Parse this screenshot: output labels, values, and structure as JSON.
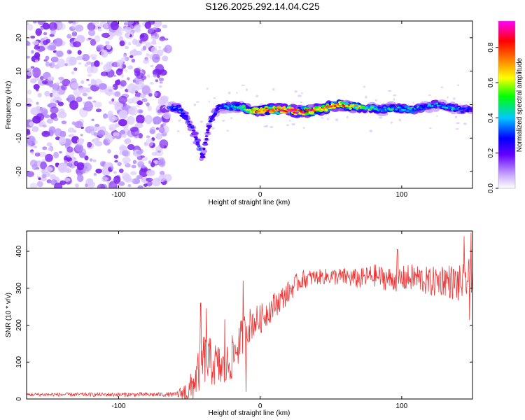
{
  "title": "S126.2025.292.14.04.C25",
  "chart_data": [
    {
      "type": "heatmap",
      "name": "spectrogram",
      "xlabel": "Height of straight line (km)",
      "ylabel": "Frequency (Hz)",
      "xlim": [
        -165,
        150
      ],
      "ylim": [
        -25,
        25
      ],
      "xticks": [
        -100,
        0,
        100
      ],
      "yticks": [
        -20,
        -10,
        0,
        10,
        20
      ],
      "noise_region_x": [
        -165,
        -65
      ],
      "signal_region_x": [
        -65,
        150
      ],
      "ridge": {
        "x": [
          -64,
          -58,
          -52,
          -47,
          -43,
          -41,
          -38,
          -35,
          -30,
          -25,
          -15,
          -5,
          5,
          15,
          25,
          35,
          45,
          55,
          65,
          75,
          85,
          95,
          105,
          115,
          125,
          135,
          145,
          150
        ],
        "freq": [
          -1,
          -1,
          -4,
          -8,
          -13,
          -16,
          -10,
          -5,
          -1,
          -0.5,
          -0.5,
          -2,
          -1.5,
          -1.5,
          -2,
          -2,
          -1,
          0,
          -0.5,
          -1,
          -1.5,
          -1,
          -1.5,
          -1,
          0,
          -1,
          -1.5,
          -1
        ],
        "amp": [
          0.35,
          0.4,
          0.3,
          0.3,
          0.35,
          0.35,
          0.3,
          0.3,
          0.35,
          0.4,
          0.5,
          0.7,
          0.85,
          0.9,
          0.9,
          0.85,
          0.85,
          0.8,
          0.7,
          0.55,
          0.45,
          0.45,
          0.45,
          0.4,
          0.4,
          0.45,
          0.35,
          0.3
        ]
      },
      "colorbar": {
        "label": "Normalized spectral amplitude",
        "ticks": [
          0.0,
          0.2,
          0.4,
          0.6,
          0.8
        ],
        "range": [
          0,
          0.95
        ],
        "colors": [
          "#ffffff",
          "#c8a8ff",
          "#6600ff",
          "#0000ff",
          "#00c8ff",
          "#00ff00",
          "#ffff00",
          "#ff8800",
          "#ff0000",
          "#ff00ff"
        ]
      }
    },
    {
      "type": "line",
      "name": "snr",
      "xlabel": "Height of straight line (km)",
      "ylabel": "SNR (10 * v/v)",
      "xlim": [
        -165,
        150
      ],
      "ylim": [
        0,
        455
      ],
      "xticks": [
        -100,
        0,
        100
      ],
      "yticks": [
        0,
        100,
        200,
        300,
        400
      ],
      "color": "#ee3333",
      "trend": {
        "x": [
          -165,
          -60,
          -50,
          -45,
          -40,
          -35,
          -30,
          -25,
          -20,
          -15,
          -10,
          -5,
          0,
          5,
          10,
          15,
          20,
          25,
          30,
          40,
          50,
          60,
          70,
          80,
          90,
          100,
          110,
          120,
          130,
          140,
          150
        ],
        "y": [
          12,
          12,
          20,
          60,
          110,
          100,
          90,
          80,
          110,
          150,
          190,
          210,
          215,
          235,
          255,
          270,
          290,
          310,
          325,
          330,
          332,
          330,
          325,
          335,
          325,
          325,
          330,
          315,
          325,
          310,
          330
        ]
      },
      "noise": {
        "x": [
          -165,
          -60,
          -50,
          -40,
          -30,
          -20,
          -10,
          0,
          20,
          40,
          80,
          100,
          120,
          150
        ],
        "amp": [
          5,
          6,
          40,
          70,
          60,
          60,
          50,
          40,
          30,
          20,
          30,
          35,
          40,
          55
        ]
      },
      "spikes": [
        {
          "x": -42,
          "y": 260
        },
        {
          "x": -38,
          "y": 245
        },
        {
          "x": -25,
          "y": 215
        },
        {
          "x": -12,
          "y": 320
        },
        {
          "x": -10,
          "y": 20
        },
        {
          "x": 97,
          "y": 405
        },
        {
          "x": 144,
          "y": 440
        },
        {
          "x": 149,
          "y": 450
        },
        {
          "x": 148,
          "y": 215
        }
      ]
    }
  ]
}
